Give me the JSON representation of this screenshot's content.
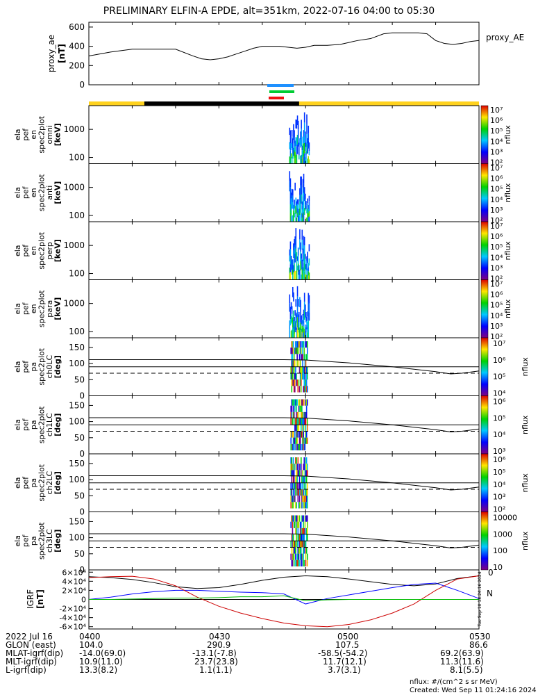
{
  "title": "PRELIMINARY ELFIN-A EPDE, alt=351km, 2022-07-16 04:00 to 05:30",
  "colors": {
    "bar_yellow": "#ffd21e",
    "bar_black": "#000000",
    "ae_line": "#000000",
    "bfield_x": "#000000",
    "bfield_y": "#0000ff",
    "bfield_z": "#cc0000",
    "bfield_extra": "#00bb00"
  },
  "chart_data": [
    {
      "type": "line",
      "name": "proxy_ae",
      "ylabel": "proxy_ae [nT]",
      "legend": "proxy_AE",
      "ylim": [
        0,
        650
      ],
      "yticks": [
        "600",
        "400",
        "200",
        "0"
      ],
      "x_minutes": [
        0,
        5,
        10,
        15,
        20,
        24,
        26,
        28,
        30,
        32,
        34,
        36,
        38,
        40,
        42,
        44,
        46,
        48,
        50,
        52,
        55,
        58,
        60,
        62,
        65,
        68,
        70,
        72,
        74,
        76,
        78,
        80,
        82,
        84,
        86,
        88,
        90
      ],
      "y": [
        300,
        340,
        370,
        370,
        370,
        300,
        270,
        260,
        270,
        290,
        320,
        350,
        380,
        400,
        400,
        400,
        390,
        380,
        390,
        410,
        410,
        420,
        440,
        460,
        480,
        530,
        540,
        540,
        540,
        540,
        530,
        460,
        430,
        420,
        430,
        450,
        460
      ]
    },
    {
      "type": "heatmap",
      "panels": [
        {
          "name": "omni",
          "ylabel": [
            "ela",
            "pef",
            "en",
            "spec2plot",
            "omni",
            "[keV]"
          ]
        },
        {
          "name": "anti",
          "ylabel": [
            "ela",
            "pef",
            "en",
            "spec2plot",
            "anti",
            "[keV]"
          ]
        },
        {
          "name": "perp",
          "ylabel": [
            "ela",
            "pef",
            "en",
            "spec2plot",
            "perp",
            "[keV]"
          ]
        },
        {
          "name": "para",
          "ylabel": [
            "ela",
            "pef",
            "en",
            "spec2plot",
            "para",
            "[keV]"
          ]
        }
      ],
      "ylim_keV": [
        60,
        7000
      ],
      "yticks": [
        "1000",
        "100"
      ],
      "colorbar_label": "nflux",
      "colorbar_ticks": [
        "10⁷",
        "10⁶",
        "10⁵",
        "10⁴",
        "10³",
        "10²"
      ]
    },
    {
      "type": "heatmap",
      "panels": [
        {
          "name": "ch0LC",
          "ylabel": [
            "ela",
            "pef",
            "pa",
            "spec2plot",
            "ch0LC",
            "[deg]"
          ],
          "colorbar_ticks": [
            "10⁷",
            "10⁶",
            "10⁵",
            "10⁴"
          ]
        },
        {
          "name": "ch1LC",
          "ylabel": [
            "ela",
            "pef",
            "pa",
            "spec2plot",
            "ch1LC",
            "[deg]"
          ],
          "colorbar_ticks": [
            "10⁶",
            "10⁵",
            "10⁴",
            "10³"
          ]
        },
        {
          "name": "ch2LC",
          "ylabel": [
            "ela",
            "pef",
            "pa",
            "spec2plot",
            "ch2LC",
            "[deg]"
          ],
          "colorbar_ticks": [
            "10⁶",
            "10⁵",
            "10⁴",
            "10³",
            "10²"
          ]
        },
        {
          "name": "ch3LC",
          "ylabel": [
            "ela",
            "pef",
            "pa",
            "spec2plot",
            "ch3LC",
            "[deg]"
          ],
          "colorbar_ticks": [
            "10000",
            "1000",
            "100",
            "10"
          ]
        }
      ],
      "ylim_deg": [
        0,
        180
      ],
      "yticks": [
        "150",
        "100",
        "50",
        "0"
      ],
      "colorbar_label": "nflux",
      "loss_cone_x_minutes": [
        45,
        50,
        60,
        70,
        80,
        83.5,
        86,
        90
      ],
      "loss_cone_deg": [
        112,
        111,
        102,
        90,
        75,
        68,
        70,
        77
      ],
      "solid_line_deg": [
        90,
        90,
        90,
        90,
        90,
        90,
        90,
        90
      ],
      "dashed_line_deg": [
        70,
        70,
        70,
        70,
        70,
        70,
        70,
        70
      ]
    },
    {
      "type": "line",
      "name": "IGRF",
      "ylabel": "IGRF [nT]",
      "ylim": [
        -65000,
        65000
      ],
      "yticks": [
        "6×10⁴",
        "4×10⁴",
        "2×10⁴",
        "0",
        "-2×10⁴",
        "-4×10⁴",
        "-6×10⁴"
      ],
      "x_minutes": [
        0,
        5,
        10,
        15,
        20,
        25,
        30,
        35,
        40,
        45,
        50,
        55,
        60,
        65,
        70,
        75,
        80,
        85,
        90
      ],
      "series": [
        {
          "name": "x",
          "values": [
            50000,
            48000,
            44000,
            37000,
            28000,
            24000,
            26000,
            33000,
            42000,
            49000,
            52000,
            50000,
            45000,
            39000,
            33000,
            30000,
            34000,
            46000,
            52000
          ]
        },
        {
          "name": "y",
          "values": [
            0,
            5000,
            12000,
            17000,
            20000,
            20000,
            18000,
            16000,
            15000,
            12000,
            -10000,
            2000,
            10000,
            18000,
            26000,
            33000,
            36000,
            20000,
            2000
          ]
        },
        {
          "name": "z",
          "values": [
            48000,
            50000,
            51000,
            45000,
            30000,
            5000,
            -15000,
            -30000,
            -42000,
            -52000,
            -58000,
            -60000,
            -55000,
            -45000,
            -30000,
            -10000,
            20000,
            45000,
            52000
          ]
        },
        {
          "name": "extra",
          "values": [
            0,
            0,
            1000,
            2000,
            3000,
            3000,
            4000,
            6000,
            6000,
            8000,
            -3000,
            -1000,
            0,
            0,
            0,
            0,
            0,
            0,
            0
          ]
        }
      ],
      "right_labels": [
        "0",
        "N"
      ],
      "vertical_stamp": "Tue Sep 10 18:24:16 2024"
    }
  ],
  "footer": {
    "rows": [
      {
        "label": "2022 Jul 16",
        "values": [
          "0400",
          "0430",
          "0500",
          "0530"
        ]
      },
      {
        "label": "GLON (east)",
        "values": [
          "104.0",
          "290.9",
          "107.5",
          "86.6"
        ]
      },
      {
        "label": "MLAT-igrf(dip)",
        "values": [
          "-14.0(69.0)",
          "-13.1(-7.8)",
          "-58.5(-54.2)",
          "69.2(63.9)"
        ]
      },
      {
        "label": "MLT-igrf(dip)",
        "values": [
          "10.9(11.0)",
          "23.7(23.8)",
          "11.7(12.1)",
          "11.3(11.6)"
        ]
      },
      {
        "label": "L-igrf(dip)",
        "values": [
          "13.3(8.2)",
          "1.1(1.1)",
          "3.7(3.1)",
          "8.1(5.5)"
        ]
      }
    ],
    "units_note": "nflux: #/(cm^2 s sr MeV)",
    "created": "Created: Wed Sep 11 01:24:16 2024"
  }
}
